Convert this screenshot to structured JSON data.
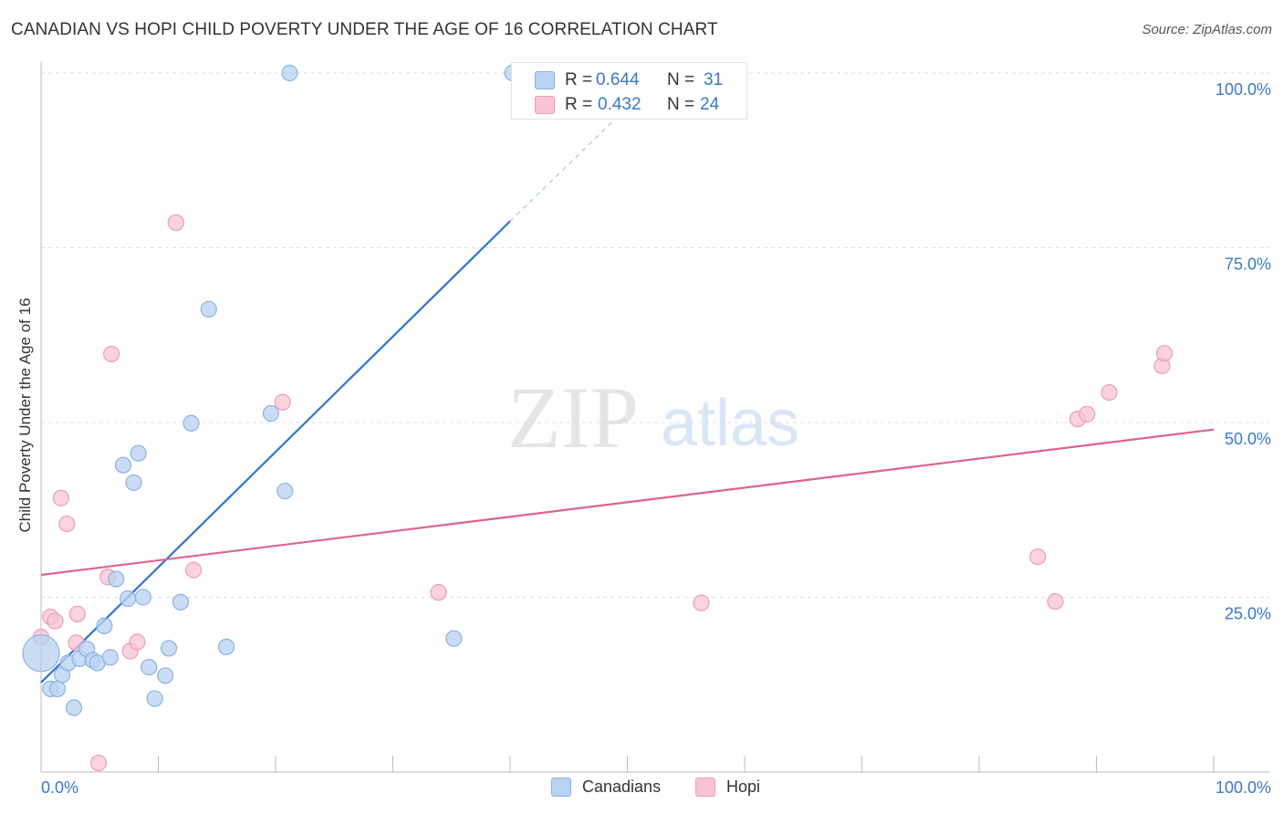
{
  "header": {
    "title": "CANADIAN VS HOPI CHILD POVERTY UNDER THE AGE OF 16 CORRELATION CHART",
    "source": "Source: ZipAtlas.com"
  },
  "watermark": {
    "zip": "ZIP",
    "atlas": "atlas"
  },
  "colors": {
    "canadians_fill": "#b8d2f2",
    "canadians_stroke": "#8ab3e3",
    "canadians_line": "#2f74d0",
    "hopi_fill": "#f8c4d4",
    "hopi_stroke": "#ec9db5",
    "hopi_line": "#e0638d",
    "axis_label": "#3a78c8",
    "grid": "#dddddd"
  },
  "legend": {
    "rows": [
      {
        "r_label": "R =",
        "r_value": "0.644",
        "n_label": "N =",
        "n_value": "31"
      },
      {
        "r_label": "R =",
        "r_value": "0.432",
        "n_label": "N =",
        "n_value": "24"
      }
    ]
  },
  "bottom_legend": {
    "series1": "Canadians",
    "series2": "Hopi"
  },
  "chart_data": {
    "type": "scatter",
    "title": "CANADIAN VS HOPI CHILD POVERTY UNDER THE AGE OF 16 CORRELATION CHART",
    "xlabel": "",
    "ylabel": "Child Poverty Under the Age of 16",
    "xlim": [
      0,
      100
    ],
    "ylim": [
      0,
      100
    ],
    "x_tick_labels": [
      "0.0%",
      "100.0%"
    ],
    "y_tick_labels": [
      "100.0%",
      "75.0%",
      "50.0%",
      "25.0%"
    ],
    "y_ticks": [
      100,
      75,
      50,
      25
    ],
    "x_minor_ticks": [
      0,
      10,
      20,
      30,
      40,
      50,
      60,
      70,
      80,
      90,
      100
    ],
    "grid": true,
    "series": [
      {
        "name": "Canadians",
        "r": 0.644,
        "n": 31,
        "trend": {
          "x0": 0,
          "y0": 12.8,
          "x1": 40,
          "y1": 78.8,
          "dashed_to_x": 53,
          "dashed_to_y": 100
        },
        "points": [
          {
            "x": 0.0,
            "y": 17.0,
            "big": true
          },
          {
            "x": 0.8,
            "y": 11.9
          },
          {
            "x": 1.4,
            "y": 11.9
          },
          {
            "x": 1.8,
            "y": 13.9
          },
          {
            "x": 2.3,
            "y": 15.6
          },
          {
            "x": 2.8,
            "y": 9.2
          },
          {
            "x": 3.3,
            "y": 16.2
          },
          {
            "x": 3.9,
            "y": 17.6
          },
          {
            "x": 4.4,
            "y": 16.0
          },
          {
            "x": 4.8,
            "y": 15.6
          },
          {
            "x": 5.4,
            "y": 20.9
          },
          {
            "x": 5.9,
            "y": 16.4
          },
          {
            "x": 6.4,
            "y": 27.6
          },
          {
            "x": 7.0,
            "y": 43.9
          },
          {
            "x": 7.4,
            "y": 24.8
          },
          {
            "x": 7.9,
            "y": 41.4
          },
          {
            "x": 8.3,
            "y": 45.6
          },
          {
            "x": 8.7,
            "y": 25.0
          },
          {
            "x": 9.2,
            "y": 15.0
          },
          {
            "x": 9.7,
            "y": 10.5
          },
          {
            "x": 10.6,
            "y": 13.8
          },
          {
            "x": 10.9,
            "y": 17.7
          },
          {
            "x": 11.9,
            "y": 24.3
          },
          {
            "x": 12.8,
            "y": 49.9
          },
          {
            "x": 14.3,
            "y": 66.2
          },
          {
            "x": 15.8,
            "y": 17.9
          },
          {
            "x": 19.6,
            "y": 51.3
          },
          {
            "x": 20.8,
            "y": 40.2
          },
          {
            "x": 21.2,
            "y": 100.0
          },
          {
            "x": 35.2,
            "y": 19.1
          },
          {
            "x": 40.2,
            "y": 100.0
          }
        ]
      },
      {
        "name": "Hopi",
        "r": 0.432,
        "n": 24,
        "trend": {
          "x0": 0,
          "y0": 28.2,
          "x1": 100,
          "y1": 49.0
        },
        "points": [
          {
            "x": 0.0,
            "y": 19.3
          },
          {
            "x": 0.8,
            "y": 22.2
          },
          {
            "x": 1.2,
            "y": 21.6
          },
          {
            "x": 1.7,
            "y": 39.2
          },
          {
            "x": 2.2,
            "y": 35.5
          },
          {
            "x": 3.1,
            "y": 22.6
          },
          {
            "x": 3.0,
            "y": 18.5
          },
          {
            "x": 4.9,
            "y": 1.3
          },
          {
            "x": 5.7,
            "y": 27.9
          },
          {
            "x": 6.0,
            "y": 59.8
          },
          {
            "x": 7.6,
            "y": 17.3
          },
          {
            "x": 8.2,
            "y": 18.6
          },
          {
            "x": 11.5,
            "y": 78.6
          },
          {
            "x": 13.0,
            "y": 28.9
          },
          {
            "x": 20.6,
            "y": 52.9
          },
          {
            "x": 33.9,
            "y": 25.7
          },
          {
            "x": 56.3,
            "y": 24.2
          },
          {
            "x": 85.0,
            "y": 30.8
          },
          {
            "x": 86.5,
            "y": 24.4
          },
          {
            "x": 88.4,
            "y": 50.5
          },
          {
            "x": 89.2,
            "y": 51.2
          },
          {
            "x": 91.1,
            "y": 54.3
          },
          {
            "x": 95.6,
            "y": 58.1
          },
          {
            "x": 95.8,
            "y": 59.9
          }
        ]
      }
    ]
  }
}
